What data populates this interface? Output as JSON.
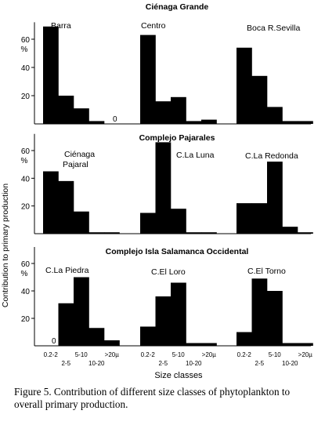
{
  "figure": {
    "caption": "Figure 5. Contribution of different size classes of phytoplankton to overall primary production.",
    "ylabel": "Contribution  to primary production",
    "xlabel": "Size classes"
  },
  "chart_data": {
    "type": "bar",
    "ylabel": "Contribution  to primary production",
    "xlabel": "Size classes",
    "ylim": [
      0,
      70
    ],
    "y_unit": "%",
    "categories": [
      "0.2-2",
      "2-5",
      "5-10",
      "10-20",
      ">20µ"
    ],
    "panels": [
      {
        "title": "Ciénaga Grande",
        "yticks": [
          20,
          40,
          60
        ],
        "series": [
          {
            "name": "Barra",
            "values": [
              69,
              20,
              11,
              2,
              0
            ],
            "zero_label": "0",
            "zero_label_index": 4
          },
          {
            "name": "Centro",
            "values": [
              63,
              16,
              19,
              2,
              3
            ]
          },
          {
            "name": "Boca R.Sevilla",
            "values": [
              54,
              34,
              12,
              2,
              2
            ]
          }
        ]
      },
      {
        "title": "Complejo Pajarales",
        "yticks": [
          20,
          40,
          60
        ],
        "series": [
          {
            "name": "Ciénaga Pajaral",
            "label_lines": [
              "Ciénaga",
              "Pajaral"
            ],
            "values": [
              45,
              38,
              16,
              1,
              1
            ]
          },
          {
            "name": "C.La Luna",
            "values": [
              15,
              66,
              18,
              1,
              1
            ]
          },
          {
            "name": "C.La Redonda",
            "values": [
              22,
              22,
              52,
              5,
              1
            ]
          }
        ]
      },
      {
        "title": "Complejo Isla Salamanca Occidental",
        "yticks": [
          20,
          40,
          60
        ],
        "series": [
          {
            "name": "C.La Piedra",
            "values": [
              0,
              31,
              50,
              13,
              4
            ],
            "zero_label": "0",
            "zero_label_index": 0
          },
          {
            "name": "C.El Loro",
            "values": [
              14,
              36,
              46,
              2,
              2
            ]
          },
          {
            "name": "C.El Torno",
            "values": [
              10,
              49,
              40,
              2,
              2
            ]
          }
        ]
      }
    ],
    "tick_labels_upper": [
      "0.2-2",
      "5-10",
      ">20µ"
    ],
    "tick_labels_lower": [
      "2-5",
      "10-20"
    ]
  }
}
